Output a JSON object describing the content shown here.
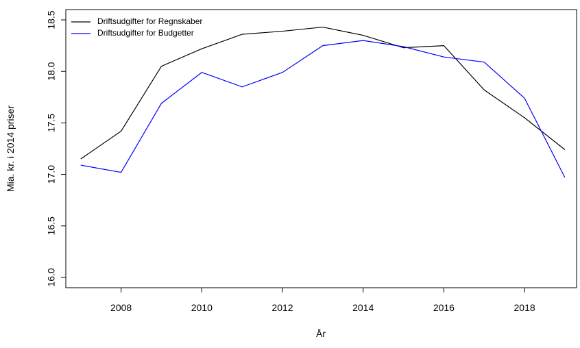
{
  "chart_data": {
    "type": "line",
    "x": [
      2007,
      2008,
      2009,
      2010,
      2011,
      2012,
      2013,
      2014,
      2015,
      2016,
      2017,
      2018,
      2019
    ],
    "series": [
      {
        "name": "Driftsudgifter for Regnskaber",
        "color": "#000000",
        "values": [
          17.15,
          17.42,
          18.05,
          18.22,
          18.36,
          18.39,
          18.43,
          18.35,
          18.23,
          18.25,
          17.82,
          17.55,
          17.24
        ]
      },
      {
        "name": "Driftsudgifter for Budgetter",
        "color": "#0000ff",
        "values": [
          17.09,
          17.02,
          17.69,
          17.99,
          17.85,
          17.99,
          18.25,
          18.3,
          18.24,
          18.14,
          18.09,
          17.74,
          16.97
        ]
      }
    ],
    "xlabel": "År",
    "ylabel": "Mia. kr. i 2014 priser",
    "xlim": [
      2006.63,
      2019.29
    ],
    "ylim": [
      15.9,
      18.6
    ],
    "xticks": [
      2008,
      2010,
      2012,
      2014,
      2016,
      2018
    ],
    "yticks": [
      {
        "value": 16,
        "label": "16.0"
      },
      16.5,
      {
        "value": 17,
        "label": "17.0"
      },
      17.5,
      {
        "value": 18,
        "label": "18.0"
      },
      18.5
    ],
    "legend": "top-left"
  }
}
